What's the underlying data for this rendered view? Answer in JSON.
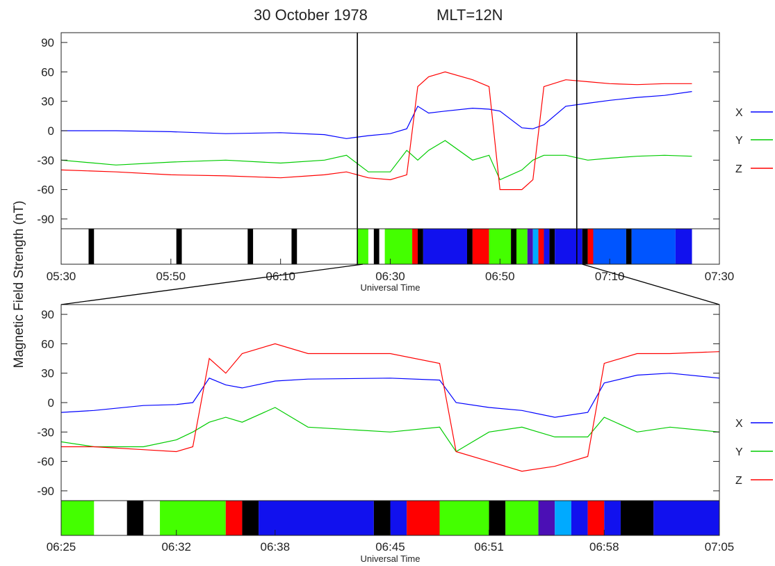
{
  "header": {
    "date_text": "30 October  1978",
    "mlt_text": "MLT=12N"
  },
  "ylabel": "Magnetic Field Strength (nT)",
  "legend": [
    {
      "name": "X",
      "color": "#0000ff"
    },
    {
      "name": "Y",
      "color": "#00cc00"
    },
    {
      "name": "Z",
      "color": "#ff0000"
    }
  ],
  "chart_data": [
    {
      "type": "line",
      "title": "30 October  1978      MLT=12N",
      "xlabel": "Universal Time",
      "ylabel": "Magnetic Field Strength (nT)",
      "xlim": [
        "05:30",
        "07:30"
      ],
      "ylim": [
        -100,
        100
      ],
      "yticks": [
        90,
        60,
        30,
        0,
        -30,
        -60,
        -90
      ],
      "xticks": [
        "05:30",
        "05:50",
        "06:10",
        "06:30",
        "06:50",
        "07:10",
        "07:30"
      ],
      "vertical_markers": [
        "06:24",
        "07:04"
      ],
      "series": [
        {
          "name": "X",
          "color": "#0000ff",
          "x": [
            "05:30",
            "05:40",
            "05:50",
            "06:00",
            "06:10",
            "06:18",
            "06:22",
            "06:26",
            "06:30",
            "06:33",
            "06:35",
            "06:37",
            "06:40",
            "06:45",
            "06:48",
            "06:50",
            "06:54",
            "06:56",
            "06:58",
            "07:02",
            "07:06",
            "07:10",
            "07:15",
            "07:20",
            "07:25"
          ],
          "values": [
            0,
            0,
            -1,
            -3,
            -2,
            -4,
            -8,
            -5,
            -3,
            2,
            25,
            18,
            20,
            23,
            22,
            20,
            3,
            2,
            6,
            25,
            28,
            31,
            34,
            36,
            40
          ]
        },
        {
          "name": "Y",
          "color": "#00cc00",
          "x": [
            "05:30",
            "05:40",
            "05:50",
            "06:00",
            "06:10",
            "06:18",
            "06:22",
            "06:26",
            "06:30",
            "06:33",
            "06:35",
            "06:37",
            "06:40",
            "06:45",
            "06:48",
            "06:50",
            "06:54",
            "06:56",
            "06:58",
            "07:02",
            "07:06",
            "07:10",
            "07:15",
            "07:20",
            "07:25"
          ],
          "values": [
            -30,
            -35,
            -32,
            -30,
            -33,
            -30,
            -25,
            -42,
            -42,
            -20,
            -30,
            -20,
            -10,
            -30,
            -25,
            -50,
            -40,
            -30,
            -25,
            -25,
            -30,
            -28,
            -26,
            -25,
            -26
          ]
        },
        {
          "name": "Z",
          "color": "#ff0000",
          "x": [
            "05:30",
            "05:40",
            "05:50",
            "06:00",
            "06:10",
            "06:18",
            "06:22",
            "06:26",
            "06:30",
            "06:33",
            "06:35",
            "06:37",
            "06:40",
            "06:45",
            "06:48",
            "06:50",
            "06:54",
            "06:56",
            "06:58",
            "07:02",
            "07:06",
            "07:10",
            "07:15",
            "07:20",
            "07:25"
          ],
          "values": [
            -40,
            -42,
            -45,
            -46,
            -48,
            -45,
            -42,
            -48,
            -50,
            -45,
            45,
            55,
            60,
            52,
            45,
            -60,
            -60,
            -50,
            45,
            52,
            50,
            48,
            47,
            48,
            48
          ]
        }
      ],
      "color_bar": {
        "time_range": [
          "05:30",
          "07:25"
        ],
        "segments": [
          {
            "start": "05:30",
            "end": "05:35",
            "color": "#ffffff"
          },
          {
            "start": "05:35",
            "end": "05:36",
            "color": "#000000"
          },
          {
            "start": "05:36",
            "end": "05:51",
            "color": "#ffffff"
          },
          {
            "start": "05:51",
            "end": "05:52",
            "color": "#000000"
          },
          {
            "start": "05:52",
            "end": "06:04",
            "color": "#ffffff"
          },
          {
            "start": "06:04",
            "end": "06:05",
            "color": "#000000"
          },
          {
            "start": "06:05",
            "end": "06:12",
            "color": "#ffffff"
          },
          {
            "start": "06:12",
            "end": "06:13",
            "color": "#000000"
          },
          {
            "start": "06:13",
            "end": "06:24",
            "color": "#ffffff"
          },
          {
            "start": "06:24",
            "end": "06:26",
            "color": "#44ff00"
          },
          {
            "start": "06:26",
            "end": "06:27",
            "color": "#ffffff"
          },
          {
            "start": "06:27",
            "end": "06:28",
            "color": "#000000"
          },
          {
            "start": "06:28",
            "end": "06:29",
            "color": "#ffffff"
          },
          {
            "start": "06:29",
            "end": "06:34",
            "color": "#44ff00"
          },
          {
            "start": "06:34",
            "end": "06:35",
            "color": "#ff0000"
          },
          {
            "start": "06:35",
            "end": "06:36",
            "color": "#000000"
          },
          {
            "start": "06:36",
            "end": "06:44",
            "color": "#1111ee"
          },
          {
            "start": "06:44",
            "end": "06:45",
            "color": "#000000"
          },
          {
            "start": "06:45",
            "end": "06:48",
            "color": "#ff0000"
          },
          {
            "start": "06:48",
            "end": "06:52",
            "color": "#44ff00"
          },
          {
            "start": "06:52",
            "end": "06:53",
            "color": "#000000"
          },
          {
            "start": "06:53",
            "end": "06:55",
            "color": "#44ff00"
          },
          {
            "start": "06:55",
            "end": "06:56",
            "color": "#4b0fb5"
          },
          {
            "start": "06:56",
            "end": "06:57",
            "color": "#00aaff"
          },
          {
            "start": "06:57",
            "end": "06:58",
            "color": "#ff0000"
          },
          {
            "start": "06:58",
            "end": "06:59",
            "color": "#1111ee"
          },
          {
            "start": "06:59",
            "end": "07:00",
            "color": "#000000"
          },
          {
            "start": "07:00",
            "end": "07:05",
            "color": "#1111ee"
          },
          {
            "start": "07:05",
            "end": "07:06",
            "color": "#000000"
          },
          {
            "start": "07:06",
            "end": "07:07",
            "color": "#ff0000"
          },
          {
            "start": "07:07",
            "end": "07:13",
            "color": "#0055ff"
          },
          {
            "start": "07:13",
            "end": "07:14",
            "color": "#000000"
          },
          {
            "start": "07:14",
            "end": "07:22",
            "color": "#0055ff"
          },
          {
            "start": "07:22",
            "end": "07:25",
            "color": "#1111ee"
          }
        ]
      }
    },
    {
      "type": "line",
      "xlabel": "Universal Time",
      "xlim": [
        "06:25",
        "07:05"
      ],
      "ylim": [
        -100,
        100
      ],
      "yticks": [
        90,
        60,
        30,
        0,
        -30,
        -60,
        -90
      ],
      "xticks": [
        "06:25",
        "06:32",
        "06:38",
        "06:45",
        "06:51",
        "06:58",
        "07:05"
      ],
      "series": [
        {
          "name": "X",
          "color": "#0000ff",
          "x": [
            "06:25",
            "06:27",
            "06:30",
            "06:32",
            "06:33",
            "06:34",
            "06:35",
            "06:36",
            "06:38",
            "06:40",
            "06:45",
            "06:48",
            "06:49",
            "06:51",
            "06:53",
            "06:55",
            "06:57",
            "06:58",
            "07:00",
            "07:02",
            "07:05"
          ],
          "values": [
            -10,
            -8,
            -3,
            -2,
            0,
            25,
            18,
            15,
            22,
            24,
            25,
            23,
            0,
            -5,
            -8,
            -15,
            -10,
            20,
            28,
            30,
            25
          ]
        },
        {
          "name": "Y",
          "color": "#00cc00",
          "x": [
            "06:25",
            "06:27",
            "06:30",
            "06:32",
            "06:33",
            "06:34",
            "06:35",
            "06:36",
            "06:38",
            "06:40",
            "06:45",
            "06:48",
            "06:49",
            "06:51",
            "06:53",
            "06:55",
            "06:57",
            "06:58",
            "07:00",
            "07:02",
            "07:05"
          ],
          "values": [
            -40,
            -45,
            -45,
            -38,
            -30,
            -20,
            -15,
            -20,
            -5,
            -25,
            -30,
            -25,
            -50,
            -30,
            -25,
            -35,
            -35,
            -15,
            -30,
            -25,
            -30
          ]
        },
        {
          "name": "Z",
          "color": "#ff0000",
          "x": [
            "06:25",
            "06:27",
            "06:30",
            "06:32",
            "06:33",
            "06:34",
            "06:35",
            "06:36",
            "06:38",
            "06:40",
            "06:45",
            "06:48",
            "06:49",
            "06:51",
            "06:53",
            "06:55",
            "06:57",
            "06:58",
            "07:00",
            "07:02",
            "07:05"
          ],
          "values": [
            -45,
            -45,
            -48,
            -50,
            -45,
            45,
            30,
            50,
            60,
            50,
            50,
            40,
            -50,
            -60,
            -70,
            -65,
            -55,
            40,
            50,
            50,
            52
          ]
        }
      ],
      "color_bar": {
        "time_range": [
          "06:25",
          "07:05"
        ],
        "segments": [
          {
            "start": "06:25",
            "end": "06:27",
            "color": "#44ff00"
          },
          {
            "start": "06:27",
            "end": "06:29",
            "color": "#ffffff"
          },
          {
            "start": "06:29",
            "end": "06:30",
            "color": "#000000"
          },
          {
            "start": "06:30",
            "end": "06:31",
            "color": "#ffffff"
          },
          {
            "start": "06:31",
            "end": "06:35",
            "color": "#44ff00"
          },
          {
            "start": "06:35",
            "end": "06:36",
            "color": "#ff0000"
          },
          {
            "start": "06:36",
            "end": "06:37",
            "color": "#000000"
          },
          {
            "start": "06:37",
            "end": "06:44",
            "color": "#1111ee"
          },
          {
            "start": "06:44",
            "end": "06:45",
            "color": "#000000"
          },
          {
            "start": "06:45",
            "end": "06:46",
            "color": "#1111ee"
          },
          {
            "start": "06:46",
            "end": "06:48",
            "color": "#ff0000"
          },
          {
            "start": "06:48",
            "end": "06:51",
            "color": "#44ff00"
          },
          {
            "start": "06:51",
            "end": "06:52",
            "color": "#000000"
          },
          {
            "start": "06:52",
            "end": "06:54",
            "color": "#44ff00"
          },
          {
            "start": "06:54",
            "end": "06:55",
            "color": "#4b0fb5"
          },
          {
            "start": "06:55",
            "end": "06:56",
            "color": "#00aaff"
          },
          {
            "start": "06:56",
            "end": "06:57",
            "color": "#1111ee"
          },
          {
            "start": "06:57",
            "end": "06:58",
            "color": "#ff0000"
          },
          {
            "start": "06:58",
            "end": "06:59",
            "color": "#1111ee"
          },
          {
            "start": "06:59",
            "end": "07:01",
            "color": "#000000"
          },
          {
            "start": "07:01",
            "end": "07:05",
            "color": "#1111ee"
          }
        ]
      }
    }
  ]
}
